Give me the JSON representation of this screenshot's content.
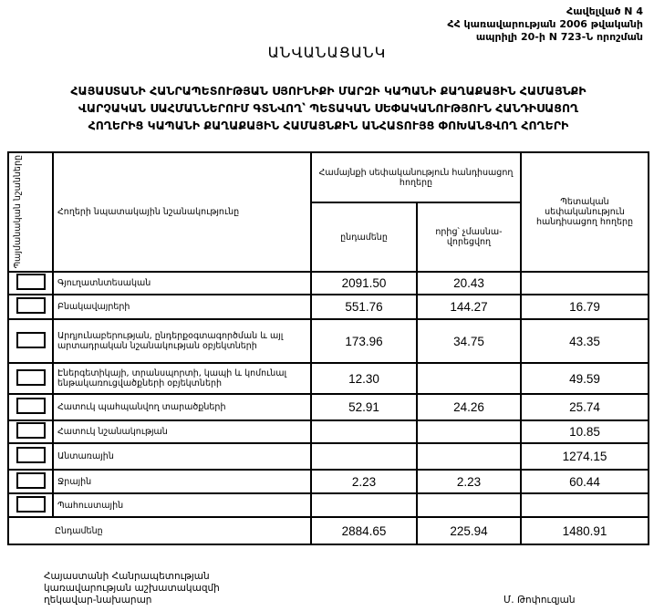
{
  "reference": [
    "Հավելված N 4",
    "ՀՀ կառավարության 2006 թվականի",
    "ապրիլի 20-ի N 723-Ն որոշման"
  ],
  "title": "ԱՆՎԱՆԱՑԱՆԿ",
  "subtitle": [
    "ՀԱՅԱՍՏԱՆԻ ՀԱՆՐԱՊԵՏՈՒԹՅԱՆ ՍՅՈՒՆԻՔԻ ՄԱՐԶԻ ԿԱՊԱՆԻ ՔԱՂԱՔԱՅԻՆ ՀԱՄԱՅՆՔԻ",
    "ՎԱՐՉԱԿԱՆ ՍԱՀՄԱՆՆԵՐՈՒՄ ԳՏՆՎՈՂ՝ ՊԵՏԱԿԱՆ ՍԵՓԱԿԱՆՈՒԹՅՈՒՆ ՀԱՆԴԻՍԱՑՈՂ",
    "ՀՈՂԵՐԻՑ ԿԱՊԱՆԻ ՔԱՂԱՔԱՅԻՆ ՀԱՄԱՅՆՔԻՆ ԱՆՀԱՏՈՒՅՑ ՓՈԽԱՆՑՎՈՂ ՀՈՂԵՐԻ"
  ],
  "table": {
    "headers": {
      "symbols": "Պայմանական նշանները",
      "purpose": "Հողերի նպատակային նշանակությունը",
      "community": "Համայնքի սեփականություն հանդիսացող հողերը",
      "total": "ընդամենը",
      "of_which": "որից՝ չմասնա-վորեցվող",
      "state": "Պետական սեփականություն հանդիսացող հողերը"
    },
    "rows": [
      {
        "label": "Գյուղատնտեսական",
        "total": "2091.50",
        "of_which": "20.43",
        "state": ""
      },
      {
        "label": "Բնակավայրերի",
        "total": "551.76",
        "of_which": "144.27",
        "state": "16.79"
      },
      {
        "label": "Արդյունաբերության, ընդերքօգտագործման և այլ արտադրական նշանակության օբյեկտների",
        "total": "173.96",
        "of_which": "34.75",
        "state": "43.35"
      },
      {
        "label": "Էներգետիկայի, տրանսպորտի, կապի և կոմունալ ենթակառուցվածքների օբյեկտների",
        "total": "12.30",
        "of_which": "",
        "state": "49.59"
      },
      {
        "label": "Հատուկ պահպանվող տարածքների",
        "total": "52.91",
        "of_which": "24.26",
        "state": "25.74"
      },
      {
        "label": "Հատուկ նշանակության",
        "total": "",
        "of_which": "",
        "state": "10.85"
      },
      {
        "label": "Անտառային",
        "total": "",
        "of_which": "",
        "state": "1274.15"
      },
      {
        "label": "Ջրային",
        "total": "2.23",
        "of_which": "2.23",
        "state": "60.44"
      },
      {
        "label": "Պահուստային",
        "total": "",
        "of_which": "",
        "state": ""
      }
    ],
    "totals": {
      "label": "Ընդամենը",
      "total": "2884.65",
      "of_which": "225.94",
      "state": "1480.91"
    }
  },
  "footer": {
    "position": [
      "Հայաստանի Հանրապետության",
      "կառավարության աշխատակազմի",
      "ղեկավար-նախարար"
    ],
    "signatory": "Մ. Թոփուզյան"
  }
}
